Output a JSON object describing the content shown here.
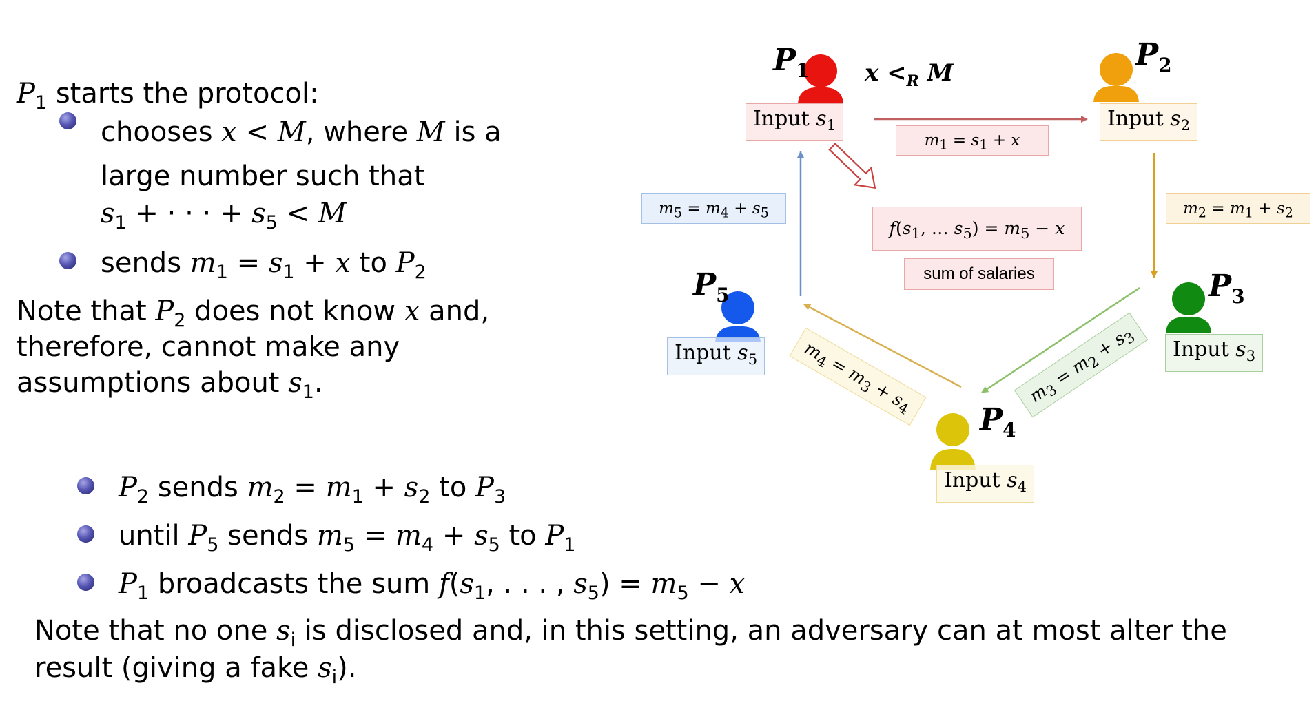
{
  "left_text": {
    "intro": [
      "P",
      "1",
      " starts the protocol:"
    ],
    "bullet1_l1": [
      "chooses ",
      "x",
      " < ",
      "M",
      ", where ",
      "M",
      " is a"
    ],
    "bullet1_l2": "large number such that",
    "bullet1_l3": [
      "s",
      "1",
      " + · · · + ",
      "s",
      "5",
      " < ",
      "M"
    ],
    "bullet2": [
      "sends ",
      "m",
      "1",
      " = ",
      "s",
      "1",
      " + ",
      "x",
      " to ",
      "P",
      "2"
    ],
    "note1_l1": [
      "Note that ",
      "P",
      "2",
      " does not know ",
      "x",
      " and,"
    ],
    "note1_l2": "therefore, cannot make any",
    "note1_l3": [
      "assumptions about ",
      "s",
      "1",
      "."
    ]
  },
  "bottom_text": {
    "bullet3": [
      "P",
      "2",
      " sends ",
      "m",
      "2",
      " = ",
      "m",
      "1",
      " + ",
      "s",
      "2",
      " to ",
      "P",
      "3"
    ],
    "bullet4": [
      "until ",
      "P",
      "5",
      " sends ",
      "m",
      "5",
      " = ",
      "m",
      "4",
      " + ",
      "s",
      "5",
      " to ",
      "P",
      "1"
    ],
    "bullet5": [
      "P",
      "1",
      " broadcasts the sum ",
      "f",
      "(",
      "s",
      "1",
      ", . . . , ",
      "s",
      "5",
      ") = ",
      "m",
      "5",
      " − ",
      "x"
    ],
    "note2_l1": [
      "Note that no one ",
      "s",
      "i",
      " is disclosed and, in this setting, an adversary can at most alter the"
    ],
    "note2_l2": [
      "result (giving a fake ",
      "s",
      "i",
      ")."
    ]
  },
  "diagram": {
    "parties": [
      {
        "name": "P",
        "sub": "1",
        "color": "#e8140f",
        "input": [
          "Input ",
          "s",
          "1"
        ],
        "input_bg": "#fce8e8",
        "input_border": "#e9a8a8"
      },
      {
        "name": "P",
        "sub": "2",
        "color": "#f0a00c",
        "input": [
          "Input ",
          "s",
          "2"
        ],
        "input_bg": "#fdf3e1",
        "input_border": "#f2cf93"
      },
      {
        "name": "P",
        "sub": "3",
        "color": "#108a10",
        "input": [
          "Input ",
          "s",
          "3"
        ],
        "input_bg": "#eaf4e6",
        "input_border": "#a9cf9e"
      },
      {
        "name": "P",
        "sub": "4",
        "color": "#dcc40a",
        "input": [
          "Input ",
          "s",
          "4"
        ],
        "input_bg": "#fdf8e4",
        "input_border": "#eedb9a"
      },
      {
        "name": "P",
        "sub": "5",
        "color": "#1559ec",
        "input": [
          "Input ",
          "s",
          "5"
        ],
        "input_bg": "#e8f0fb",
        "input_border": "#a5c0e6"
      }
    ],
    "x_less_M": [
      "x",
      " <",
      "R",
      " M"
    ],
    "msg1": [
      "m",
      "1",
      " = ",
      "s",
      "1",
      " + ",
      "x"
    ],
    "msg2": [
      "m",
      "2",
      " = ",
      "m",
      "1",
      " + ",
      "s",
      "2"
    ],
    "msg3": [
      "m",
      "3",
      " = ",
      "m",
      "2",
      " + ",
      "s",
      "3"
    ],
    "msg4": [
      "m",
      "4",
      " = ",
      "m",
      "3",
      " + ",
      "s",
      "4"
    ],
    "msg5": [
      "m",
      "5",
      " = ",
      "m",
      "4",
      " + ",
      "s",
      "5"
    ],
    "result_formula": [
      "f",
      "(",
      "s",
      "1",
      ", … ",
      "s",
      "5",
      ") = ",
      "m",
      "5",
      " − ",
      "x"
    ],
    "result_caption": "sum of salaries",
    "colors": {
      "arrow12": "#c06060",
      "arrow23": "#d8a020",
      "arrow34": "#8cbf6a",
      "arrow45": "#d8b050",
      "arrow51": "#6c8fc8",
      "msg1_bg": "#fce8e8",
      "msg2_bg": "#fdf3e1",
      "msg3_bg": "#eaf4e6",
      "msg4_bg": "#fdf8e4",
      "msg5_bg": "#e8f0fb",
      "bullet": "#3a3a8f"
    }
  }
}
